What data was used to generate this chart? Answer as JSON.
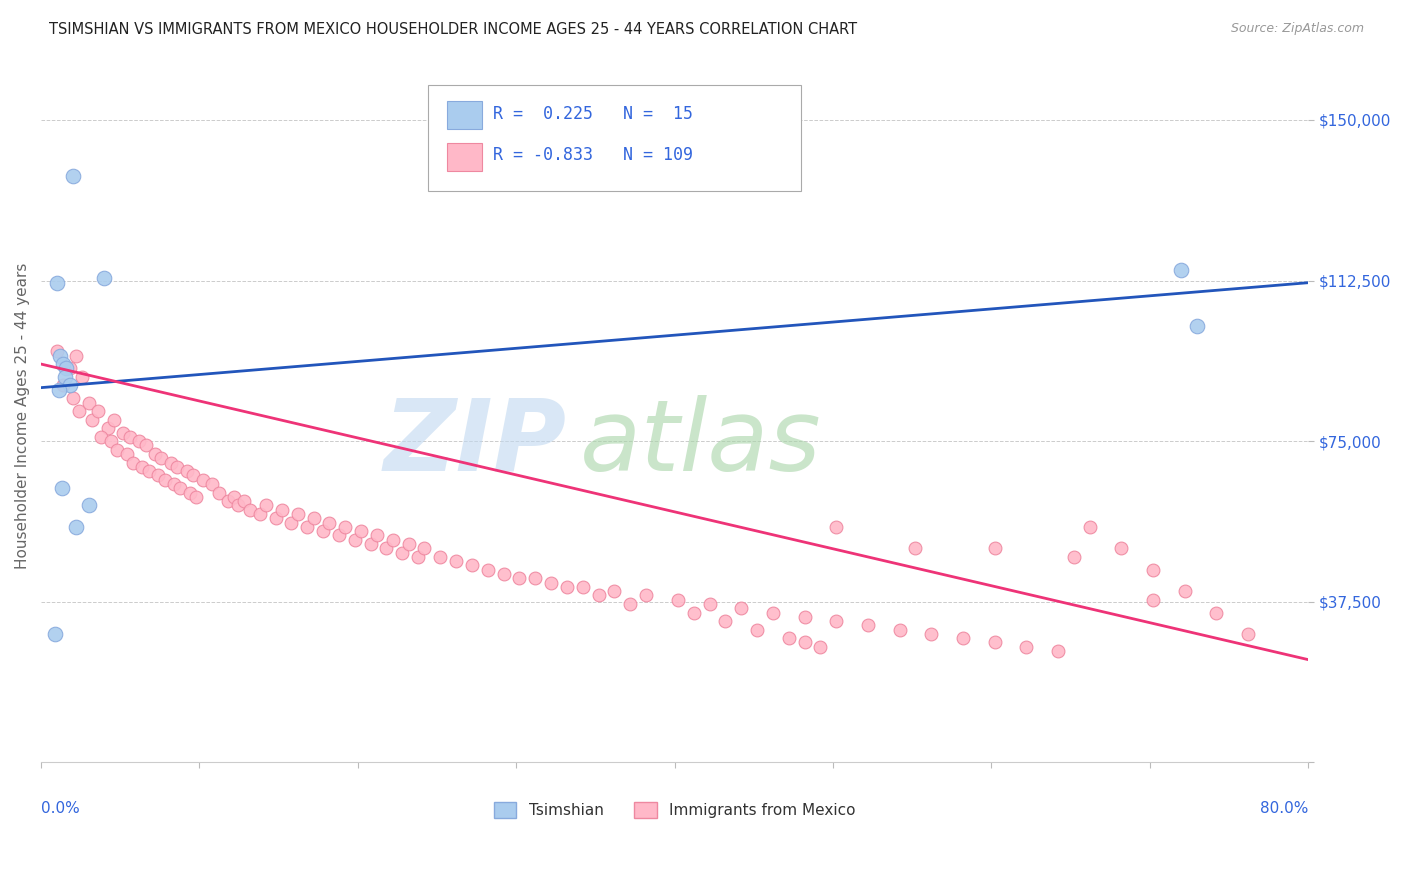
{
  "title": "TSIMSHIAN VS IMMIGRANTS FROM MEXICO HOUSEHOLDER INCOME AGES 25 - 44 YEARS CORRELATION CHART",
  "source": "Source: ZipAtlas.com",
  "ylabel": "Householder Income Ages 25 - 44 years",
  "background_color": "#ffffff",
  "y_ticks": [
    0,
    37500,
    75000,
    112500,
    150000
  ],
  "y_tick_labels": [
    "",
    "$37,500",
    "$75,000",
    "$112,500",
    "$150,000"
  ],
  "x_lim": [
    0.0,
    0.8
  ],
  "y_lim": [
    0,
    162000
  ],
  "tsimshian_color": "#aaccee",
  "tsimshian_edge": "#88aadd",
  "mexico_color": "#ffb8c8",
  "mexico_edge": "#ee88a0",
  "trend_blue": "#2255bb",
  "trend_pink": "#ee3377",
  "grid_color": "#cccccc",
  "title_color": "#222222",
  "label_color": "#3366dd",
  "legend_r1": "R =  0.225",
  "legend_n1": "N =  15",
  "legend_r2": "R = -0.833",
  "legend_n2": "N = 109",
  "blue_trend_x": [
    0.0,
    0.8
  ],
  "blue_trend_y": [
    87500,
    112000
  ],
  "pink_trend_x": [
    0.0,
    0.8
  ],
  "pink_trend_y": [
    93000,
    24000
  ],
  "tsimshian_x": [
    0.02,
    0.01,
    0.04,
    0.012,
    0.014,
    0.016,
    0.015,
    0.018,
    0.011,
    0.72,
    0.73,
    0.013,
    0.009,
    0.03,
    0.022
  ],
  "tsimshian_y": [
    137000,
    112000,
    113000,
    95000,
    93000,
    92000,
    90000,
    88000,
    87000,
    115000,
    102000,
    64000,
    30000,
    60000,
    55000
  ],
  "mexico_x": [
    0.01,
    0.018,
    0.014,
    0.022,
    0.02,
    0.026,
    0.024,
    0.03,
    0.032,
    0.036,
    0.042,
    0.038,
    0.046,
    0.044,
    0.052,
    0.048,
    0.056,
    0.054,
    0.062,
    0.058,
    0.066,
    0.064,
    0.072,
    0.068,
    0.076,
    0.074,
    0.082,
    0.078,
    0.086,
    0.084,
    0.092,
    0.088,
    0.096,
    0.094,
    0.102,
    0.098,
    0.108,
    0.112,
    0.118,
    0.122,
    0.124,
    0.128,
    0.132,
    0.138,
    0.142,
    0.148,
    0.152,
    0.158,
    0.162,
    0.168,
    0.172,
    0.178,
    0.182,
    0.188,
    0.192,
    0.198,
    0.202,
    0.208,
    0.212,
    0.218,
    0.222,
    0.228,
    0.232,
    0.238,
    0.242,
    0.252,
    0.262,
    0.272,
    0.282,
    0.292,
    0.302,
    0.322,
    0.342,
    0.362,
    0.382,
    0.402,
    0.422,
    0.442,
    0.462,
    0.482,
    0.502,
    0.522,
    0.542,
    0.562,
    0.582,
    0.602,
    0.622,
    0.642,
    0.662,
    0.682,
    0.702,
    0.722,
    0.742,
    0.762,
    0.602,
    0.652,
    0.702,
    0.502,
    0.552,
    0.482,
    0.312,
    0.332,
    0.352,
    0.372,
    0.412,
    0.432,
    0.452,
    0.472,
    0.492
  ],
  "mexico_y": [
    96000,
    92000,
    88000,
    95000,
    85000,
    90000,
    82000,
    84000,
    80000,
    82000,
    78000,
    76000,
    80000,
    75000,
    77000,
    73000,
    76000,
    72000,
    75000,
    70000,
    74000,
    69000,
    72000,
    68000,
    71000,
    67000,
    70000,
    66000,
    69000,
    65000,
    68000,
    64000,
    67000,
    63000,
    66000,
    62000,
    65000,
    63000,
    61000,
    62000,
    60000,
    61000,
    59000,
    58000,
    60000,
    57000,
    59000,
    56000,
    58000,
    55000,
    57000,
    54000,
    56000,
    53000,
    55000,
    52000,
    54000,
    51000,
    53000,
    50000,
    52000,
    49000,
    51000,
    48000,
    50000,
    48000,
    47000,
    46000,
    45000,
    44000,
    43000,
    42000,
    41000,
    40000,
    39000,
    38000,
    37000,
    36000,
    35000,
    34000,
    33000,
    32000,
    31000,
    30000,
    29000,
    28000,
    27000,
    26000,
    55000,
    50000,
    45000,
    40000,
    35000,
    30000,
    50000,
    48000,
    38000,
    55000,
    50000,
    28000,
    43000,
    41000,
    39000,
    37000,
    35000,
    33000,
    31000,
    29000,
    27000
  ]
}
